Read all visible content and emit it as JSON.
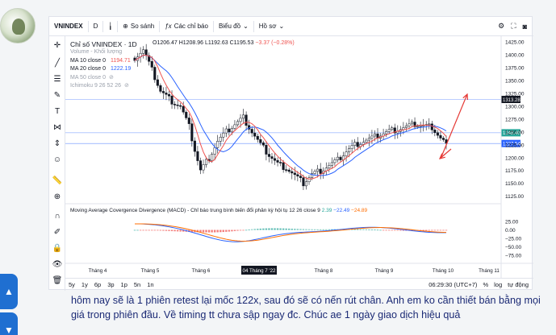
{
  "toolbar": {
    "symbol": "VNINDEX",
    "interval": "D",
    "compare_label": "So sánh",
    "indicators_label": "Các chỉ báo",
    "chart_style_label": "Biểu đồ",
    "template_label": "Hồ sơ"
  },
  "legend": {
    "title": "Chỉ số VNINDEX · 1D",
    "volume": "Volume - Khối lượng",
    "ma10_label": "MA 10 close 0",
    "ma10_value": "1194.71",
    "ma20_label": "MA 20 close 0",
    "ma20_value": "1222.19",
    "ma50_label": "MA 50 close 0",
    "ichimoku_label": "Ichimoku 9 26 52 26",
    "ohlc": "O1206.47 H1208.96 L1192.63 C1195.53",
    "change": "−3.37 (−0.28%)"
  },
  "macd": {
    "label": "Moving Average Covergence Divergence (MACD) - Chỉ báo trung bình biến đổi phân kỳ hội tụ 12 26 close 9",
    "v1": "2.39",
    "v2": "−22.49",
    "v3": "−24.89"
  },
  "price_axis": [
    "1425.00",
    "1400.00",
    "1375.00",
    "1350.00",
    "1325.00",
    "1300.00",
    "1275.00",
    "1250.00",
    "1225.00",
    "1200.00",
    "1175.00",
    "1150.00",
    "1125.00"
  ],
  "price_labels": {
    "p1": "1313.28",
    "p2": "1248.40",
    "p3": "1227.54"
  },
  "macd_axis": [
    "25.00",
    "0.00",
    "−25.00",
    "−50.00",
    "−75.00"
  ],
  "time_axis": [
    "Tháng 4",
    "Tháng 5",
    "Tháng 6",
    "04 Tháng 7 '22",
    "Tháng 8",
    "Tháng 9",
    "Tháng 10",
    "Tháng 11"
  ],
  "bottom": {
    "ranges": [
      "5y",
      "1y",
      "6p",
      "3p",
      "1p",
      "5n",
      "1n"
    ],
    "time": "06:29:30 (UTC+7)",
    "percent": "%",
    "log": "log",
    "auto": "tự động"
  },
  "caption": "hôm nay sẽ là 1 phiên retest lại mốc 122x, sau đó sẽ có nến rút chân. Anh em ko cần thiết bán bằng mọi giá trong phiên đầu. Về timing tt chưa sập ngay đc. Chúc ae 1 ngày giao dịch hiệu quả",
  "colors": {
    "up": "#131722",
    "down": "#131722",
    "ma10": "#ef5350",
    "ma20": "#2962ff",
    "arrow": "#e53935",
    "accent": "#2962ff"
  }
}
